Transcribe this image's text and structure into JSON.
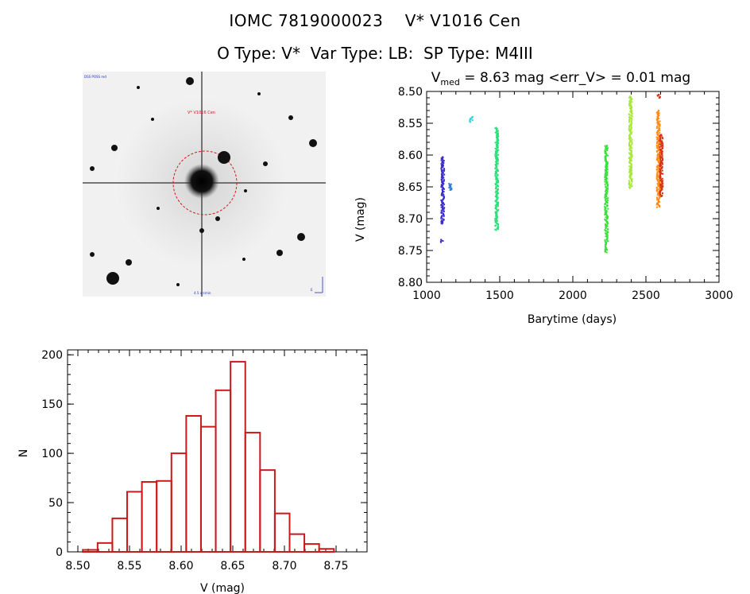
{
  "header": {
    "title": "IOMC 7819000023    V* V1016 Cen",
    "subtitle": "O Type: V*  Var Type: LB:  SP Type: M4III"
  },
  "sky_image": {
    "target_label": "V* V1016 Cen",
    "corner_label": "DSS POSS red",
    "bottom_label": "4.5 arcmin",
    "compass_label": "E"
  },
  "chart_data": [
    {
      "type": "scatter",
      "title_prefix": "V",
      "title_subscript": "med",
      "title_rest": " = 8.63 mag <err_V> = 0.01 mag",
      "xlabel": "Barytime (days)",
      "ylabel": "V (mag)",
      "xlim": [
        1000,
        3000
      ],
      "ylim": [
        8.8,
        8.5
      ],
      "y_inverted": true,
      "xticks": [
        "1000",
        "1500",
        "2000",
        "2500",
        "3000"
      ],
      "yticks": [
        "8.50",
        "8.55",
        "8.60",
        "8.65",
        "8.70",
        "8.75",
        "8.80"
      ],
      "groups": [
        {
          "x": 1110,
          "y_min": 8.603,
          "y_max": 8.708,
          "color": "#3a2dc8"
        },
        {
          "x": 1105,
          "y_min": 8.733,
          "y_max": 8.737,
          "color": "#3a2dc8"
        },
        {
          "x": 1165,
          "y_min": 8.645,
          "y_max": 8.655,
          "color": "#2f7fd6"
        },
        {
          "x": 1305,
          "y_min": 8.54,
          "y_max": 8.548,
          "color": "#27d6d6"
        },
        {
          "x": 1480,
          "y_min": 8.557,
          "y_max": 8.718,
          "color": "#28e07a"
        },
        {
          "x": 2230,
          "y_min": 8.585,
          "y_max": 8.753,
          "color": "#3ae03a"
        },
        {
          "x": 2395,
          "y_min": 8.508,
          "y_max": 8.652,
          "color": "#a8e63c"
        },
        {
          "x": 2585,
          "y_min": 8.53,
          "y_max": 8.682,
          "color": "#ff8a10"
        },
        {
          "x": 2605,
          "y_min": 8.568,
          "y_max": 8.665,
          "color": "#d83010"
        },
        {
          "x": 2588,
          "y_min": 8.505,
          "y_max": 8.51,
          "color": "#d83010"
        }
      ]
    },
    {
      "type": "bar",
      "xlabel": "V (mag)",
      "ylabel": "N",
      "xlim": [
        8.49,
        8.78
      ],
      "ylim": [
        0,
        205
      ],
      "xticks": [
        "8.50",
        "8.55",
        "8.60",
        "8.65",
        "8.70",
        "8.75"
      ],
      "yticks": [
        "0",
        "50",
        "100",
        "150",
        "200"
      ],
      "bin_width": 0.0143,
      "bin_start": 8.5048,
      "values": [
        2,
        9,
        34,
        61,
        71,
        72,
        100,
        138,
        127,
        164,
        193,
        121,
        83,
        39,
        18,
        8,
        3
      ],
      "bar_color": "#cc1a1a"
    }
  ]
}
